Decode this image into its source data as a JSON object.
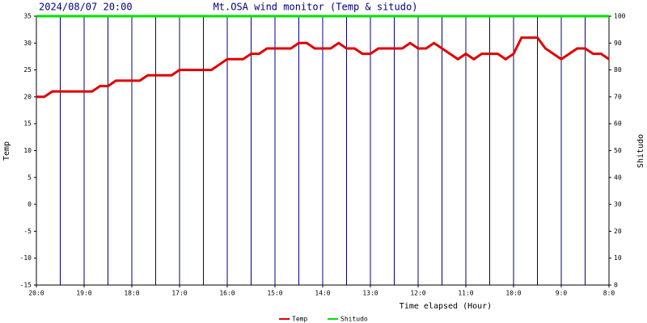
{
  "chart_data": {
    "type": "line",
    "date": "2024/08/07 20:00",
    "title": "Mt.OSA wind monitor (Temp & situdo)",
    "xlabel": "Time elapsed (Hour)",
    "ylabel": "Temp",
    "y2label": "Shitudo",
    "x": [
      20,
      19.833,
      19.667,
      19.5,
      19.333,
      19.167,
      19,
      18.833,
      18.667,
      18.5,
      18.333,
      18.167,
      18,
      17.833,
      17.667,
      17.5,
      17.333,
      17.167,
      17,
      16.833,
      16.667,
      16.5,
      16.333,
      16.167,
      16,
      15.833,
      15.667,
      15.5,
      15.333,
      15.167,
      15,
      14.833,
      14.667,
      14.5,
      14.333,
      14.167,
      14,
      13.833,
      13.667,
      13.5,
      13.333,
      13.167,
      13,
      12.833,
      12.667,
      12.5,
      12.333,
      12.167,
      12,
      11.833,
      11.667,
      11.5,
      11.333,
      11.167,
      11,
      10.833,
      10.667,
      10.5,
      10.333,
      10.167,
      10,
      9.833,
      9.667,
      9.5,
      9.333,
      9.167,
      9,
      8.833,
      8.667,
      8.5,
      8.333,
      8.167,
      8
    ],
    "series": [
      {
        "name": "Temp",
        "color": "#e00000",
        "values": [
          20,
          20,
          21,
          21,
          21,
          21,
          21,
          21,
          22,
          22,
          23,
          23,
          23,
          23,
          24,
          24,
          24,
          24,
          25,
          25,
          25,
          25,
          25,
          26,
          27,
          27,
          27,
          28,
          28,
          29,
          29,
          29,
          29,
          30,
          30,
          29,
          29,
          29,
          30,
          29,
          29,
          28,
          28,
          29,
          29,
          29,
          29,
          30,
          29,
          29,
          30,
          29,
          28,
          27,
          28,
          27,
          28,
          28,
          28,
          27,
          28,
          31,
          31,
          31,
          29,
          28,
          27,
          28,
          29,
          29,
          28,
          28,
          27
        ]
      },
      {
        "name": "Shitudo",
        "color": "#00e000",
        "axis": "y2",
        "values": [
          100,
          100,
          100,
          100,
          100,
          100,
          100,
          100,
          100,
          100,
          100,
          100,
          100,
          100,
          100,
          100,
          100,
          100,
          100,
          100,
          100,
          100,
          100,
          100,
          100,
          100,
          100,
          100,
          100,
          100,
          100,
          100,
          100,
          100,
          100,
          100,
          100,
          100,
          100,
          100,
          100,
          100,
          100,
          100,
          100,
          100,
          100,
          100,
          100,
          100,
          100,
          100,
          100,
          100,
          100,
          100,
          100,
          100,
          100,
          100,
          100,
          100,
          100,
          100,
          100,
          100,
          100,
          100,
          100,
          100,
          100,
          100,
          100
        ]
      }
    ],
    "xlim": [
      20,
      8
    ],
    "xticks": [
      {
        "value": 20,
        "label": "20:0"
      },
      {
        "value": 19,
        "label": "19:0"
      },
      {
        "value": 18,
        "label": "18:0"
      },
      {
        "value": 17,
        "label": "17:0"
      },
      {
        "value": 16,
        "label": "16:0"
      },
      {
        "value": 15,
        "label": "15:0"
      },
      {
        "value": 14,
        "label": "14:0"
      },
      {
        "value": 13,
        "label": "13:0"
      },
      {
        "value": 12,
        "label": "12:0"
      },
      {
        "value": 11,
        "label": "11:0"
      },
      {
        "value": 10,
        "label": "10:0"
      },
      {
        "value": 9,
        "label": "9:0"
      },
      {
        "value": 8,
        "label": "8:0"
      }
    ],
    "ylim": [
      -15,
      35
    ],
    "yticks": [
      -15,
      -10,
      -5,
      0,
      5,
      10,
      15,
      20,
      25,
      30,
      35
    ],
    "y2lim": [
      0,
      100
    ],
    "y2ticks": [
      0,
      10,
      20,
      30,
      40,
      50,
      60,
      70,
      80,
      90,
      100
    ],
    "grid": true,
    "grid_color": "#000080",
    "legend": "bottom"
  }
}
